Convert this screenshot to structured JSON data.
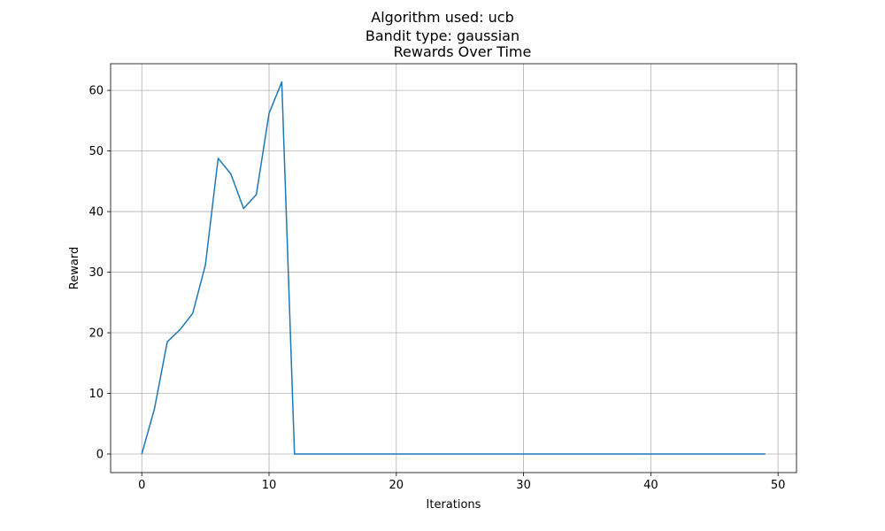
{
  "figure": {
    "suptitle_line1": "Algorithm used: ucb",
    "suptitle_line2": "Bandit type: gaussian"
  },
  "chart_data": {
    "type": "line",
    "title": "Rewards Over Time",
    "xlabel": "Iterations",
    "ylabel": "Reward",
    "xlim": [
      -2.45,
      51.45
    ],
    "ylim": [
      -3.07,
      64.4
    ],
    "xticks": [
      0,
      10,
      20,
      30,
      40,
      50
    ],
    "yticks": [
      0,
      10,
      20,
      30,
      40,
      50,
      60
    ],
    "grid": true,
    "line_color": "#1f77b4",
    "series": [
      {
        "x": [
          0,
          1,
          2,
          3,
          4,
          5,
          6,
          7,
          8,
          9,
          10,
          11,
          12,
          13,
          14,
          15,
          16,
          17,
          18,
          19,
          20,
          21,
          22,
          23,
          24,
          25,
          26,
          27,
          28,
          29,
          30,
          31,
          32,
          33,
          34,
          35,
          36,
          37,
          38,
          39,
          40,
          41,
          42,
          43,
          44,
          45,
          46,
          47,
          48,
          49
        ],
        "values": [
          0,
          7.5,
          18.5,
          20.5,
          23.2,
          31.2,
          48.8,
          46.2,
          40.5,
          42.8,
          56.2,
          61.4,
          0,
          0,
          0,
          0,
          0,
          0,
          0,
          0,
          0,
          0,
          0,
          0,
          0,
          0,
          0,
          0,
          0,
          0,
          0,
          0,
          0,
          0,
          0,
          0,
          0,
          0,
          0,
          0,
          0,
          0,
          0,
          0,
          0,
          0,
          0,
          0,
          0,
          0
        ]
      }
    ]
  }
}
